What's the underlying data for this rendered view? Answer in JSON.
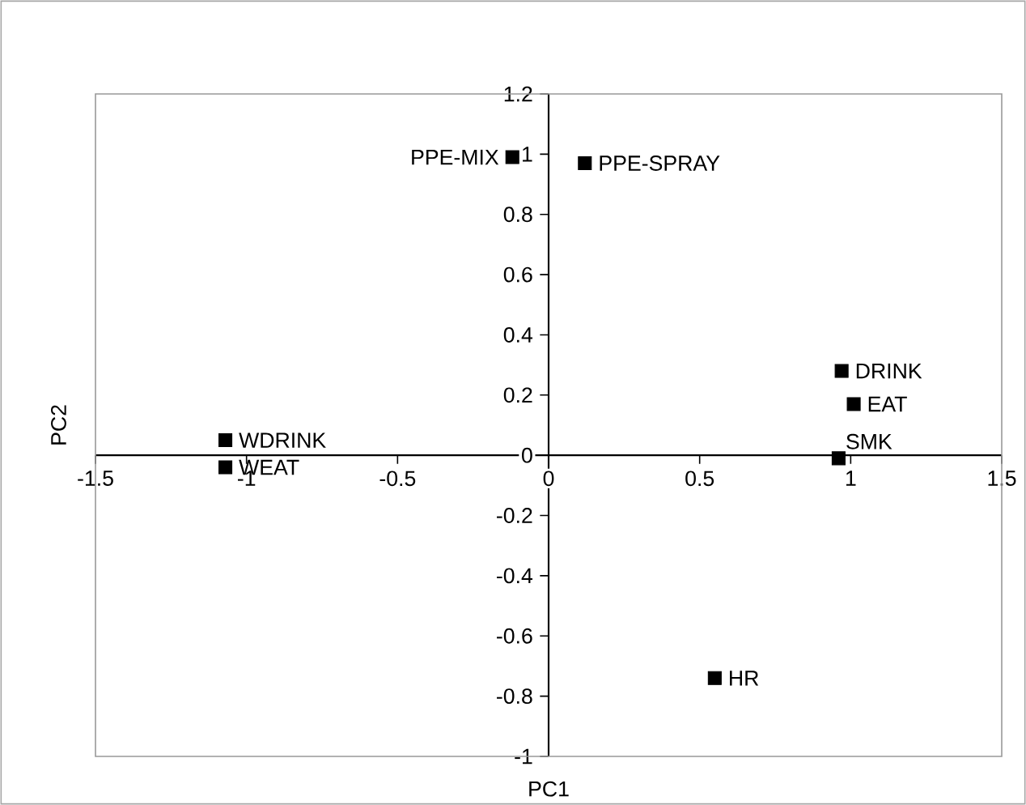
{
  "chart_data": {
    "type": "scatter",
    "xlabel": "PC1",
    "ylabel": "PC2",
    "x": [
      -0.12,
      0.12,
      0.97,
      1.01,
      0.96,
      -1.07,
      -1.07,
      0.55
    ],
    "series": [
      {
        "color": "#000000",
        "values": [
          0.99,
          0.97,
          0.28,
          0.17,
          -0.01,
          0.05,
          -0.04,
          -0.74
        ]
      }
    ],
    "marker": "square",
    "xlim": [
      -1.5,
      1.5
    ],
    "ylim": [
      -1,
      1.2
    ],
    "xticks": [
      -1.5,
      -1,
      -0.5,
      0,
      0.5,
      1,
      1.5
    ],
    "yticks": [
      -1,
      -0.8,
      -0.6,
      -0.4,
      -0.2,
      0,
      0.2,
      0.4,
      0.6,
      0.8,
      1,
      1.2
    ],
    "annotations": [
      {
        "text": "PPE-MIX",
        "x": -0.12,
        "y": 0.99
      },
      {
        "text": "PPE-SPRAY",
        "x": 0.12,
        "y": 0.97
      },
      {
        "text": "DRINK",
        "x": 0.97,
        "y": 0.28
      },
      {
        "text": "EAT",
        "x": 1.01,
        "y": 0.17
      },
      {
        "text": "SMK",
        "x": 0.96,
        "y": -0.01
      },
      {
        "text": "WDRINK",
        "x": -1.07,
        "y": 0.05
      },
      {
        "text": "WEAT",
        "x": -1.07,
        "y": -0.04
      },
      {
        "text": "HR",
        "x": 0.55,
        "y": -0.74
      }
    ]
  }
}
